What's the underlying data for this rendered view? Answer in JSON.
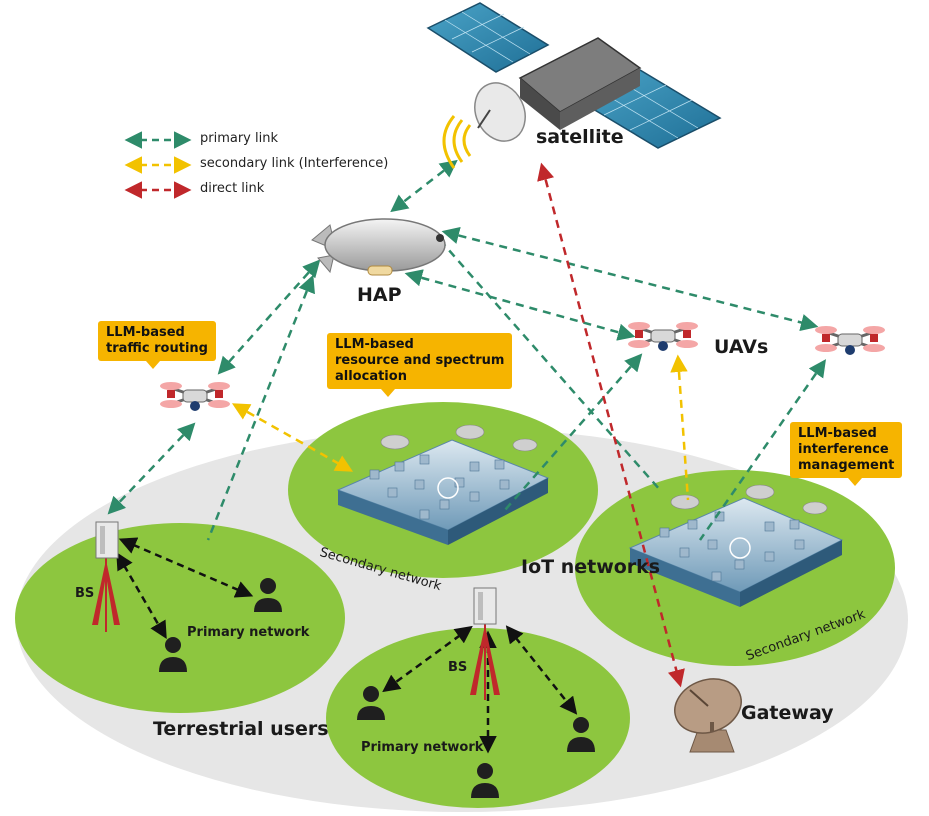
{
  "legend": {
    "primary": "primary link",
    "secondary": "secondary link (Interference)",
    "direct": "direct link"
  },
  "labels": {
    "satellite": "satellite",
    "hap": "HAP",
    "uavs": "UAVs",
    "iot": "IoT networks",
    "gateway": "Gateway",
    "terrestrial": "Terrestrial users",
    "bs_left": "BS",
    "bs_center": "BS",
    "primary_left": "Primary network",
    "primary_center": "Primary network",
    "secondary_center": "Secondary network",
    "secondary_right": "Secondary network"
  },
  "notes": {
    "routing": [
      "LLM-based",
      "traffic routing"
    ],
    "resource": [
      "LLM-based",
      "resource and spectrum",
      "allocation"
    ],
    "interference": [
      "LLM-based",
      "interference",
      "management"
    ]
  },
  "colors": {
    "primary_link": "#2e8b6a",
    "secondary_link": "#f2c200",
    "direct_link": "#c0282b",
    "network_green": "#8dc63f",
    "ground_gray": "#e6e6e6",
    "note_bg": "#f6b400"
  }
}
